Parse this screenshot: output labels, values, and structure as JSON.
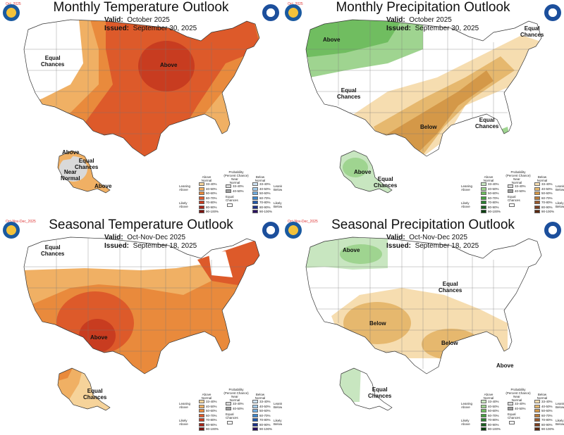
{
  "panels": [
    {
      "title": "Monthly Temperature Outlook",
      "tag": "Oct_2025",
      "valid_label": "Valid:",
      "valid_value": "October 2025",
      "issued_label": "Issued:",
      "issued_value": "September 30, 2025",
      "labels": [
        "Equal\nChances",
        "Above",
        "Above",
        "Equal\nChances",
        "Near\nNormal",
        "Above"
      ],
      "legend_kind": "temperature"
    },
    {
      "title": "Monthly Precipitation Outlook",
      "tag": "Oct_2025",
      "valid_label": "Valid:",
      "valid_value": "October 2025",
      "issued_label": "Issued:",
      "issued_value": "September 30, 2025",
      "labels": [
        "Above",
        "Equal\nChances",
        "Equal\nChances",
        "Below",
        "Equal\nChances",
        "Above",
        "Equal\nChances"
      ],
      "legend_kind": "precipitation"
    },
    {
      "title": "Seasonal Temperature Outlook",
      "tag": "Oct-Nov-Dec_2025",
      "valid_label": "Valid:",
      "valid_value": "Oct-Nov-Dec 2025",
      "issued_label": "Issued:",
      "issued_value": "September 18, 2025",
      "labels": [
        "Equal\nChances",
        "Above",
        "Equal\nChances"
      ],
      "legend_kind": "temperature"
    },
    {
      "title": "Seasonal Precipitation Outlook",
      "tag": "Oct-Nov-Dec_2025",
      "valid_label": "Valid:",
      "valid_value": "Oct-Nov-Dec 2025",
      "issued_label": "Issued:",
      "issued_value": "September 18, 2025",
      "labels": [
        "Above",
        "Equal\nChances",
        "Below",
        "Below",
        "Above",
        "Equal\nChances"
      ],
      "legend_kind": "precipitation"
    }
  ],
  "legends": {
    "temperature": {
      "heading": "Probability\n(Percent Chance)",
      "above_header": "Above\nNormal",
      "near_header": "Near\nNormal",
      "below_header": "Below\nNormal",
      "leaning_left": "Leaning\nAbove",
      "likely_left": "Likely\nAbove",
      "leaning_right": "Leaning\nBelow",
      "likely_right": "Likely\nBelow",
      "equal": "Equal\nChances",
      "ranges": [
        "33-40%",
        "40-50%",
        "50-60%",
        "60-70%",
        "70-80%",
        "80-90%",
        "90-100%"
      ],
      "near_ranges": [
        "33-40%",
        "40-50%"
      ],
      "above_colors": [
        "#f6d39a",
        "#f0b064",
        "#e98a3c",
        "#dd5a2a",
        "#c83c20",
        "#a52518",
        "#7a1410"
      ],
      "near_colors": [
        "#d9d9d9",
        "#9e9e9e"
      ],
      "below_colors": [
        "#cfe3f4",
        "#a6cdec",
        "#72aee0",
        "#3d86cc",
        "#2057a8",
        "#1a2f85",
        "#2a1060"
      ]
    },
    "precipitation": {
      "heading": "Probability\n(Percent Chance)",
      "above_header": "Above\nNormal",
      "near_header": "Near\nNormal",
      "below_header": "Below\nNormal",
      "leaning_left": "Leaning\nAbove",
      "likely_left": "Likely\nAbove",
      "leaning_right": "Leaning\nBelow",
      "likely_right": "Likely\nBelow",
      "equal": "Equal\nChances",
      "ranges": [
        "33-40%",
        "40-50%",
        "50-60%",
        "60-70%",
        "70-80%",
        "80-90%",
        "90-100%"
      ],
      "near_ranges": [
        "33-40%",
        "40-50%"
      ],
      "above_colors": [
        "#c8e6c0",
        "#9fd490",
        "#70bd60",
        "#45a040",
        "#2a8030",
        "#1a6020",
        "#0a4010"
      ],
      "near_colors": [
        "#d9d9d9",
        "#9e9e9e"
      ],
      "below_colors": [
        "#f6ddb0",
        "#e6b86e",
        "#d49848",
        "#b97a38",
        "#98582a",
        "#7a3e1e",
        "#5a2810"
      ]
    }
  }
}
